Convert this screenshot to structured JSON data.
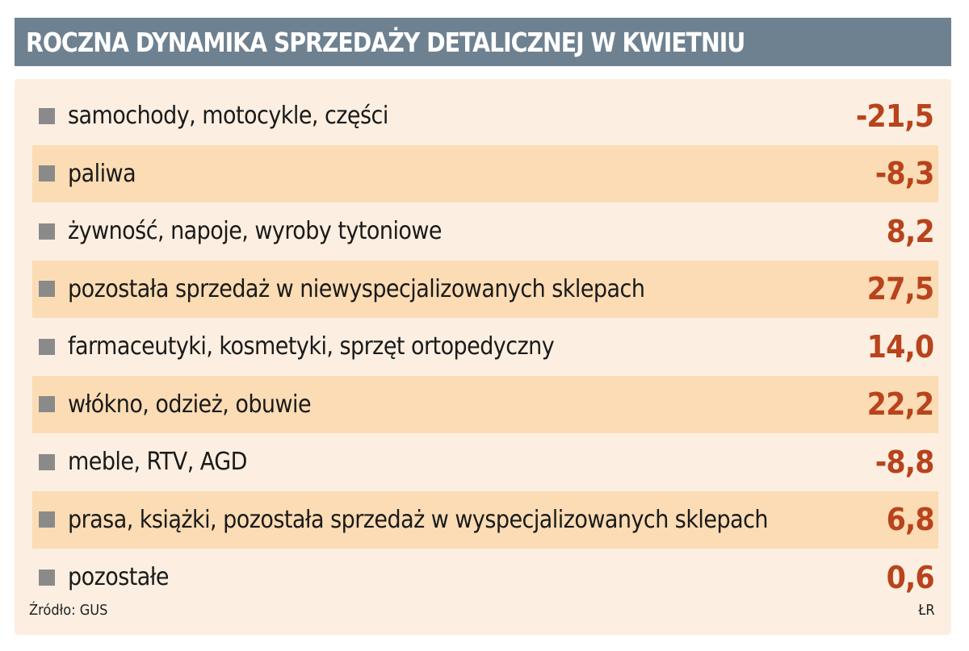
{
  "chart_data": {
    "type": "table",
    "title": "ROCZNA DYNAMIKA SPRZEDAŻY DETALICZNEJ W KWIETNIU",
    "rows": [
      {
        "label": "samochody, motocykle, części",
        "value": "-21,5"
      },
      {
        "label": "paliwa",
        "value": "-8,3"
      },
      {
        "label": "żywność, napoje, wyroby tytoniowe",
        "value": "8,2"
      },
      {
        "label": "pozostała sprzedaż w niewyspecjalizowanych sklepach",
        "value": "27,5"
      },
      {
        "label": "farmaceutyki, kosmetyki, sprzęt ortopedyczny",
        "value": "14,0"
      },
      {
        "label": "włókno, odzież, obuwie",
        "value": "22,2"
      },
      {
        "label": "meble, RTV, AGD",
        "value": "-8,8"
      },
      {
        "label": "prasa, książki, pozostała sprzedaż w wyspecjalizowanych sklepach",
        "value": "6,8"
      },
      {
        "label": "pozostałe",
        "value": "0,6"
      }
    ],
    "source": "Źródło: GUS",
    "credit": "ŁR",
    "colors": {
      "title_bar": "#6e8190",
      "panel": "#fcefe1",
      "row_shade": "#fbdcb4",
      "value_text": "#b8431c",
      "bullet": "#8a8a8a"
    }
  }
}
